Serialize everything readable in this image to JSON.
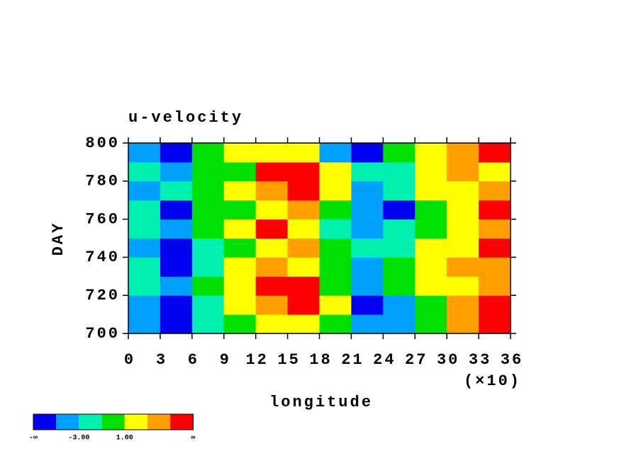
{
  "chart_data": {
    "type": "heatmap",
    "title": "u-velocity",
    "xlabel": "longitude",
    "ylabel": "DAY",
    "x_multiplier": "(×10)",
    "xlim": [
      0,
      36
    ],
    "xticks": [
      0,
      3,
      6,
      9,
      12,
      15,
      18,
      21,
      24,
      27,
      30,
      33,
      36
    ],
    "ylim": [
      700,
      800
    ],
    "yticks": [
      700,
      720,
      740,
      760,
      780,
      800
    ],
    "z": [
      [
        1,
        0,
        2,
        3,
        4,
        4,
        3,
        1,
        1,
        3,
        5,
        6
      ],
      [
        1,
        0,
        2,
        4,
        5,
        6,
        4,
        0,
        1,
        3,
        5,
        6
      ],
      [
        2,
        1,
        3,
        4,
        6,
        6,
        3,
        1,
        3,
        4,
        4,
        5
      ],
      [
        2,
        0,
        2,
        4,
        5,
        4,
        3,
        1,
        3,
        4,
        5,
        5
      ],
      [
        1,
        0,
        2,
        3,
        4,
        5,
        3,
        2,
        2,
        4,
        4,
        6
      ],
      [
        2,
        1,
        3,
        4,
        6,
        4,
        2,
        1,
        2,
        3,
        4,
        5
      ],
      [
        2,
        0,
        3,
        3,
        4,
        5,
        3,
        1,
        0,
        3,
        4,
        6
      ],
      [
        1,
        2,
        3,
        4,
        5,
        6,
        4,
        1,
        2,
        4,
        4,
        5
      ],
      [
        2,
        1,
        3,
        3,
        6,
        6,
        4,
        2,
        2,
        4,
        5,
        4
      ],
      [
        1,
        0,
        3,
        4,
        4,
        4,
        1,
        0,
        3,
        4,
        5,
        6
      ]
    ],
    "colorbar": {
      "colors": [
        "#0000f0",
        "#00a0ff",
        "#00f0b0",
        "#00e000",
        "#ffff00",
        "#ffa000",
        "#ff0000"
      ],
      "labels": [
        "-∞",
        null,
        "-3.00",
        null,
        "1.00",
        null,
        null,
        "∞"
      ]
    }
  }
}
